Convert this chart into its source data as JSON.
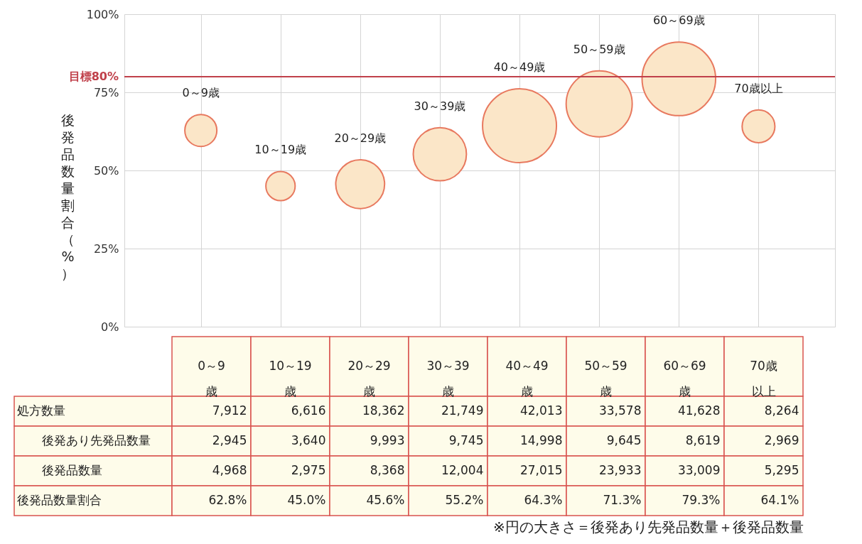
{
  "chart_data": [
    {
      "type": "bubble",
      "ylabel": "後発品数量割合（%）",
      "categories": [
        "0～9歳",
        "10～19歳",
        "20～29歳",
        "30～39歳",
        "40～49歳",
        "50～59歳",
        "60～69歳",
        "70歳以上"
      ],
      "values": [
        62.8,
        45.0,
        45.6,
        55.2,
        64.3,
        71.3,
        79.3,
        64.1
      ],
      "sizes": [
        0.188,
        0.157,
        0.437,
        0.518,
        1,
        0.799,
        0.991,
        0.197
      ],
      "color": "#e8795f",
      "ylim": [
        0,
        100
      ],
      "yticks": [
        {
          "value": 0,
          "label": "0%"
        },
        {
          "value": 25,
          "label": "25%"
        },
        {
          "value": 50,
          "label": "50%"
        },
        {
          "value": 75,
          "label": "75%"
        },
        {
          "value": 100,
          "label": "100%"
        }
      ],
      "grid": true,
      "tick_labels": "y",
      "ref_lines": [
        {
          "axis": "y",
          "value": 80,
          "label": "目標80%",
          "color": "#c0404a"
        }
      ]
    },
    {
      "type": "other",
      "categories": [
        "0～9歳",
        "10～19歳",
        "20～29歳",
        "30～39歳",
        "40～49歳",
        "50～59歳",
        "60～69歳",
        "70歳以上"
      ],
      "series": [
        {
          "name": "処方数量",
          "values": [
            7912,
            6616,
            18362,
            21749,
            42013,
            33578,
            41628,
            8264
          ],
          "value_labels": [
            "7,912",
            "6,616",
            "18,362",
            "21,749",
            "42,013",
            "33,578",
            "41,628",
            "8,264"
          ]
        },
        {
          "name": "後発あり先発品数量",
          "values": [
            2945,
            3640,
            9993,
            9745,
            14998,
            9645,
            8619,
            2969
          ],
          "value_labels": [
            "2,945",
            "3,640",
            "9,993",
            "9,745",
            "14,998",
            "9,645",
            "8,619",
            "2,969"
          ]
        },
        {
          "name": "後発品数量",
          "values": [
            4968,
            2975,
            8368,
            12004,
            27015,
            23933,
            33009,
            5295
          ],
          "value_labels": [
            "4,968",
            "2,975",
            "8,368",
            "12,004",
            "27,015",
            "23,933",
            "33,009",
            "5,295"
          ]
        },
        {
          "name": "後発品数量割合",
          "values": [
            62.8,
            45.0,
            45.6,
            55.2,
            64.3,
            71.3,
            79.3,
            64.1
          ],
          "value_labels": [
            "62.8%",
            "45.0%",
            "45.6%",
            "55.2%",
            "64.3%",
            "71.3%",
            "79.3%",
            "64.1%"
          ]
        }
      ],
      "annotations": [
        "※円の大きさ＝後発あり先発品数量＋後発品数量"
      ]
    }
  ]
}
